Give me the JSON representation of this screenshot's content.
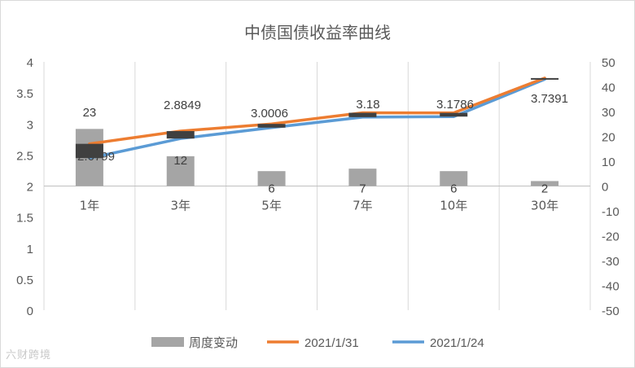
{
  "chart_data": {
    "type": "bar+line",
    "title": "中债国债收益率曲线",
    "categories": [
      "1年",
      "3年",
      "5年",
      "7年",
      "10年",
      "30年"
    ],
    "bars": {
      "name": "周度变动",
      "values": [
        23,
        12,
        6,
        7,
        6,
        2
      ],
      "axis": "right",
      "color": "#a5a5a5"
    },
    "series": [
      {
        "name": "2021/1/31",
        "values": [
          2.6799,
          2.8849,
          3.0006,
          3.18,
          3.1786,
          3.7391
        ],
        "color": "#ed7d31"
      },
      {
        "name": "2021/1/24",
        "values": [
          2.4499,
          2.7649,
          2.9406,
          3.11,
          3.1186,
          3.7191
        ],
        "color": "#5b9bd5"
      }
    ],
    "data_labels": [
      "2.6799",
      "2.8849",
      "3.0006",
      "3.18",
      "3.1786",
      "3.7391"
    ],
    "bar_labels": [
      "23",
      "12",
      "6",
      "7",
      "6",
      "2"
    ],
    "left_axis": {
      "min": 0,
      "max": 4,
      "step": 0.5,
      "ticks": [
        "0",
        "0.5",
        "1",
        "1.5",
        "2",
        "2.5",
        "3",
        "3.5",
        "4"
      ]
    },
    "right_axis": {
      "min": -50,
      "max": 50,
      "step": 10,
      "ticks": [
        "-50",
        "-40",
        "-30",
        "-20",
        "-10",
        "0",
        "10",
        "20",
        "30",
        "40",
        "50"
      ]
    },
    "grid": "vertical separators only",
    "legend_position": "bottom",
    "change_marker_color": "#404040"
  },
  "watermark": "六财跨境"
}
